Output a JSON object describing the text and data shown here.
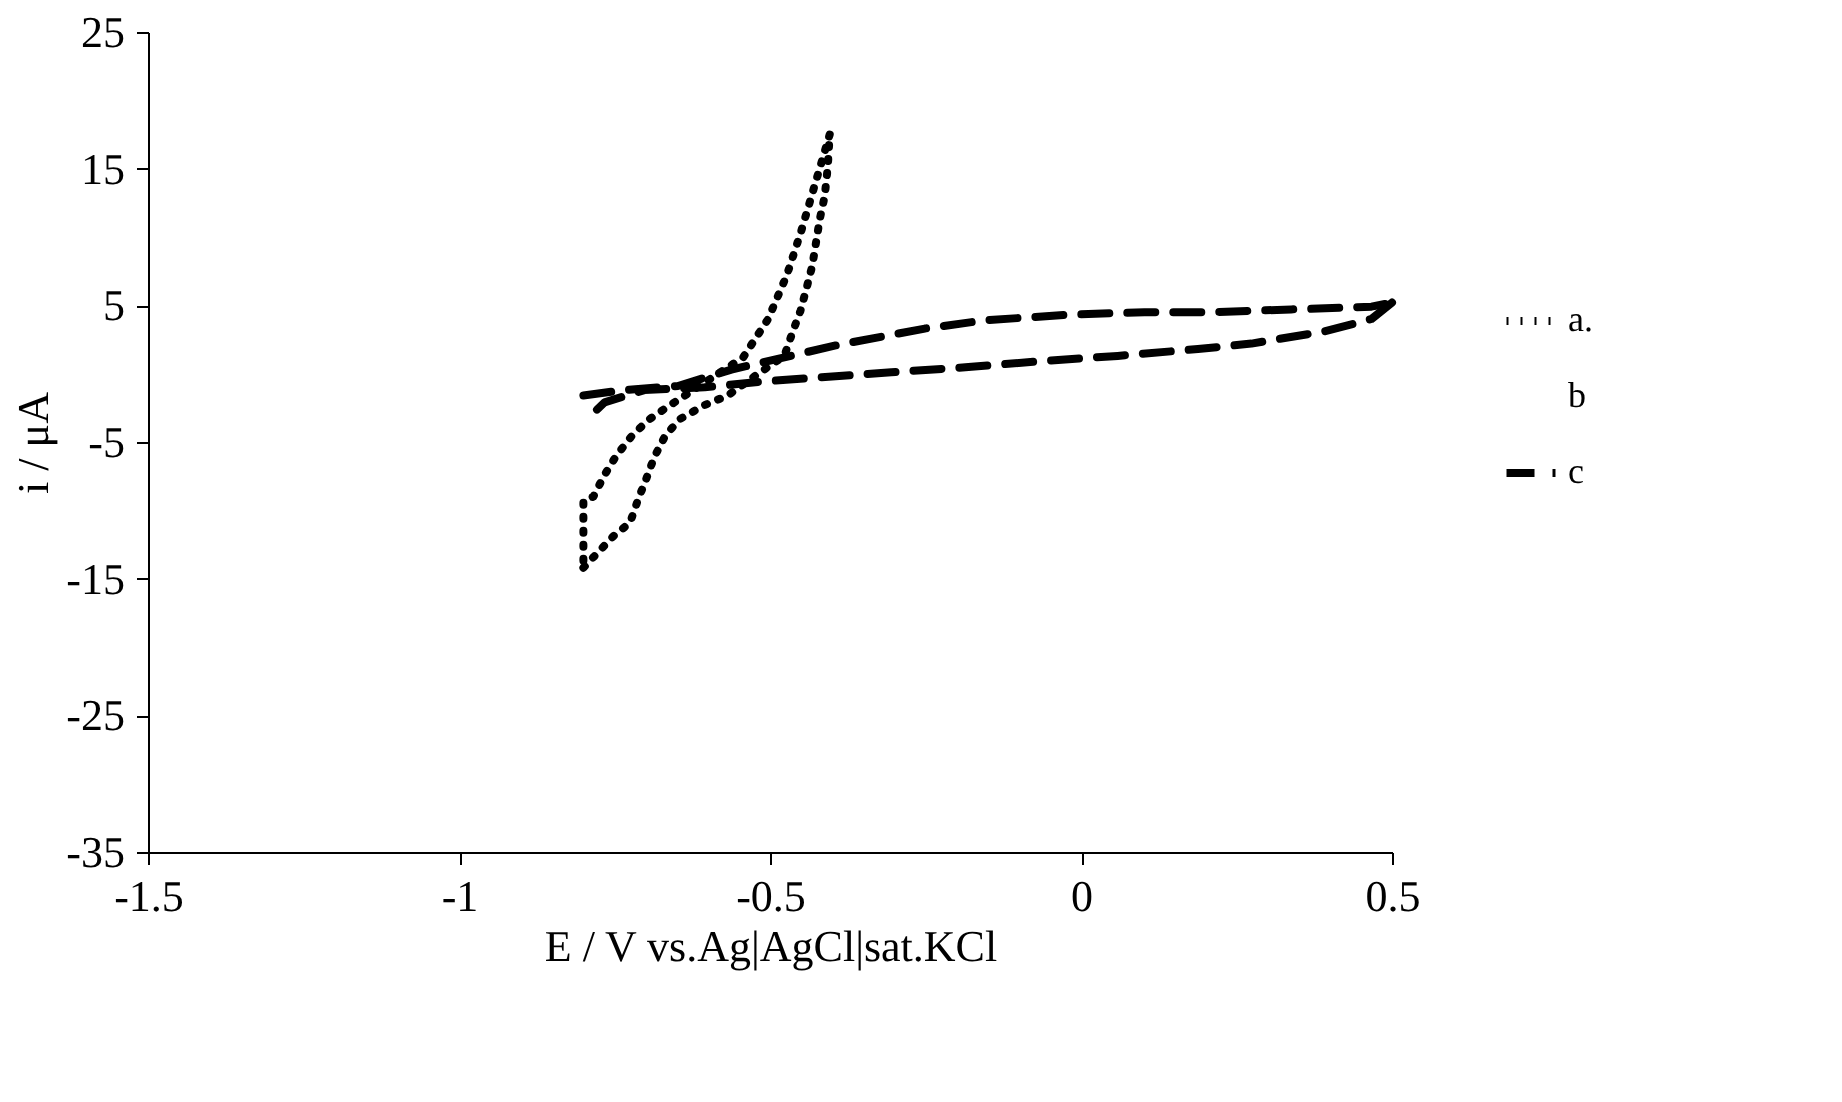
{
  "chart_data": {
    "type": "line",
    "xlabel": "E / V vs.Ag|AgCl|sat.KCl",
    "ylabel": "i / μA",
    "xlim": [
      -1.5,
      0.5
    ],
    "xticks": [
      -1.5,
      -1,
      -0.5,
      0,
      0.5
    ],
    "ylim": [
      -35,
      25
    ],
    "yticks": [
      -35,
      -25,
      -15,
      -5,
      5,
      15,
      25
    ],
    "grid": false,
    "legend": "right",
    "series": [
      {
        "name": "a.",
        "color": "#000000",
        "line_style": "dotted",
        "x": [
          -0.8,
          -0.752,
          -0.725,
          -0.712,
          -0.699,
          -0.686,
          -0.668,
          -0.644,
          -0.605,
          -0.568,
          -0.522,
          -0.477,
          -0.464,
          -0.451,
          -0.441,
          -0.432,
          -0.426,
          -0.42,
          -0.412,
          -0.407,
          -0.404
        ],
        "values": [
          -14.2,
          -11.9,
          -10.9,
          -9.2,
          -7.7,
          -6.1,
          -4.5,
          -3.3,
          -2.3,
          -1.6,
          -0.1,
          1.3,
          3.0,
          4.6,
          6.3,
          7.9,
          9.6,
          11.3,
          13.0,
          15.2,
          17.5
        ]
      },
      {
        "color": "#000000",
        "line_style": "dotted",
        "x": [
          -0.404,
          -0.428,
          -0.45,
          -0.473,
          -0.503,
          -0.543,
          -0.667,
          -0.696,
          -0.723,
          -0.747,
          -0.766,
          -0.784,
          -0.8,
          -0.8
        ],
        "values": [
          17.5,
          13.8,
          10.4,
          7.2,
          4.0,
          1.2,
          -2.5,
          -3.4,
          -4.6,
          -6.0,
          -7.4,
          -9.0,
          -9.3,
          -14.2
        ]
      },
      {
        "name": "b",
        "line_style": "solid"
      },
      {
        "name": "c",
        "color": "#000000",
        "line_style": "dashed",
        "x": [
          -0.8,
          -0.734,
          -0.648,
          -0.562,
          -0.391,
          -0.251,
          -0.155,
          -0.026,
          0.102,
          0.21,
          0.338,
          0.467,
          0.5
        ],
        "values": [
          -1.6,
          -1.2,
          -0.9,
          0.3,
          2.1,
          3.3,
          3.9,
          4.3,
          4.5,
          4.5,
          4.7,
          4.9,
          5.2
        ]
      },
      {
        "color": "#000000",
        "line_style": "dashed",
        "x": [
          0.5,
          0.467,
          0.392,
          0.274,
          0.188,
          0.059,
          -0.069,
          -0.176,
          -0.305,
          -0.519,
          -0.605,
          -0.702,
          -0.766,
          -0.798
        ],
        "values": [
          5.2,
          4.0,
          3.1,
          2.2,
          1.8,
          1.3,
          0.9,
          0.5,
          0.1,
          -0.6,
          -1.0,
          -1.2,
          -2.1,
          -3.5
        ]
      }
    ]
  }
}
